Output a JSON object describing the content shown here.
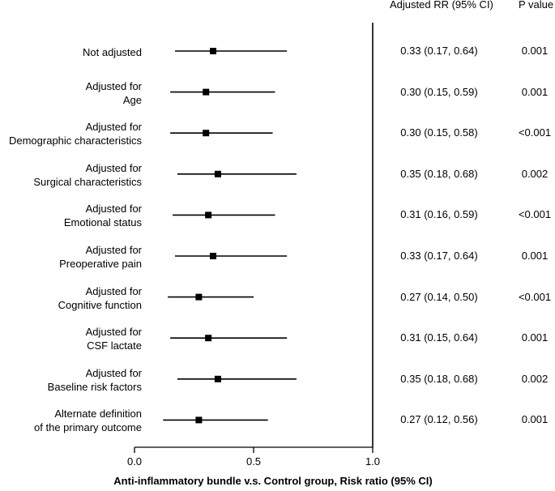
{
  "chart_data": {
    "type": "forest",
    "xlabel": "Anti-inflammatory bundle v.s. Control group, Risk ratio (95% CI)",
    "xlim": [
      0.0,
      1.0
    ],
    "xticks": [
      0.0,
      0.5,
      1.0
    ],
    "xtick_labels": [
      "0.0",
      "0.5",
      "1.0"
    ],
    "reference_line": 1.0,
    "column_headers": {
      "rr": "Adjusted RR (95% CI)",
      "p": "P value"
    },
    "rows": [
      {
        "label": [
          "Not adjusted"
        ],
        "rr": 0.33,
        "lo": 0.17,
        "hi": 0.64,
        "rr_text": "0.33 (0.17, 0.64)",
        "p": "0.001"
      },
      {
        "label": [
          "Adjusted for",
          "Age"
        ],
        "rr": 0.3,
        "lo": 0.15,
        "hi": 0.59,
        "rr_text": "0.30 (0.15, 0.59)",
        "p": "0.001"
      },
      {
        "label": [
          "Adjusted for",
          "Demographic characteristics"
        ],
        "rr": 0.3,
        "lo": 0.15,
        "hi": 0.58,
        "rr_text": "0.30 (0.15, 0.58)",
        "p": "<0.001"
      },
      {
        "label": [
          "Adjusted for",
          "Surgical characteristics"
        ],
        "rr": 0.35,
        "lo": 0.18,
        "hi": 0.68,
        "rr_text": "0.35 (0.18, 0.68)",
        "p": "0.002"
      },
      {
        "label": [
          "Adjusted for",
          "Emotional status"
        ],
        "rr": 0.31,
        "lo": 0.16,
        "hi": 0.59,
        "rr_text": "0.31 (0.16, 0.59)",
        "p": "<0.001"
      },
      {
        "label": [
          "Adjusted for",
          "Preoperative pain"
        ],
        "rr": 0.33,
        "lo": 0.17,
        "hi": 0.64,
        "rr_text": "0.33 (0.17, 0.64)",
        "p": "0.001"
      },
      {
        "label": [
          "Adjusted for",
          "Cognitive function"
        ],
        "rr": 0.27,
        "lo": 0.14,
        "hi": 0.5,
        "rr_text": "0.27 (0.14, 0.50)",
        "p": "<0.001"
      },
      {
        "label": [
          "Adjusted for",
          "CSF lactate"
        ],
        "rr": 0.31,
        "lo": 0.15,
        "hi": 0.64,
        "rr_text": "0.31 (0.15, 0.64)",
        "p": "0.001"
      },
      {
        "label": [
          "Adjusted for",
          "Baseline risk factors"
        ],
        "rr": 0.35,
        "lo": 0.18,
        "hi": 0.68,
        "rr_text": "0.35 (0.18, 0.68)",
        "p": "0.002"
      },
      {
        "label": [
          "Alternate definition",
          "of the primary outcome"
        ],
        "rr": 0.27,
        "lo": 0.12,
        "hi": 0.56,
        "rr_text": "0.27 (0.12, 0.56)",
        "p": "0.001"
      }
    ]
  }
}
